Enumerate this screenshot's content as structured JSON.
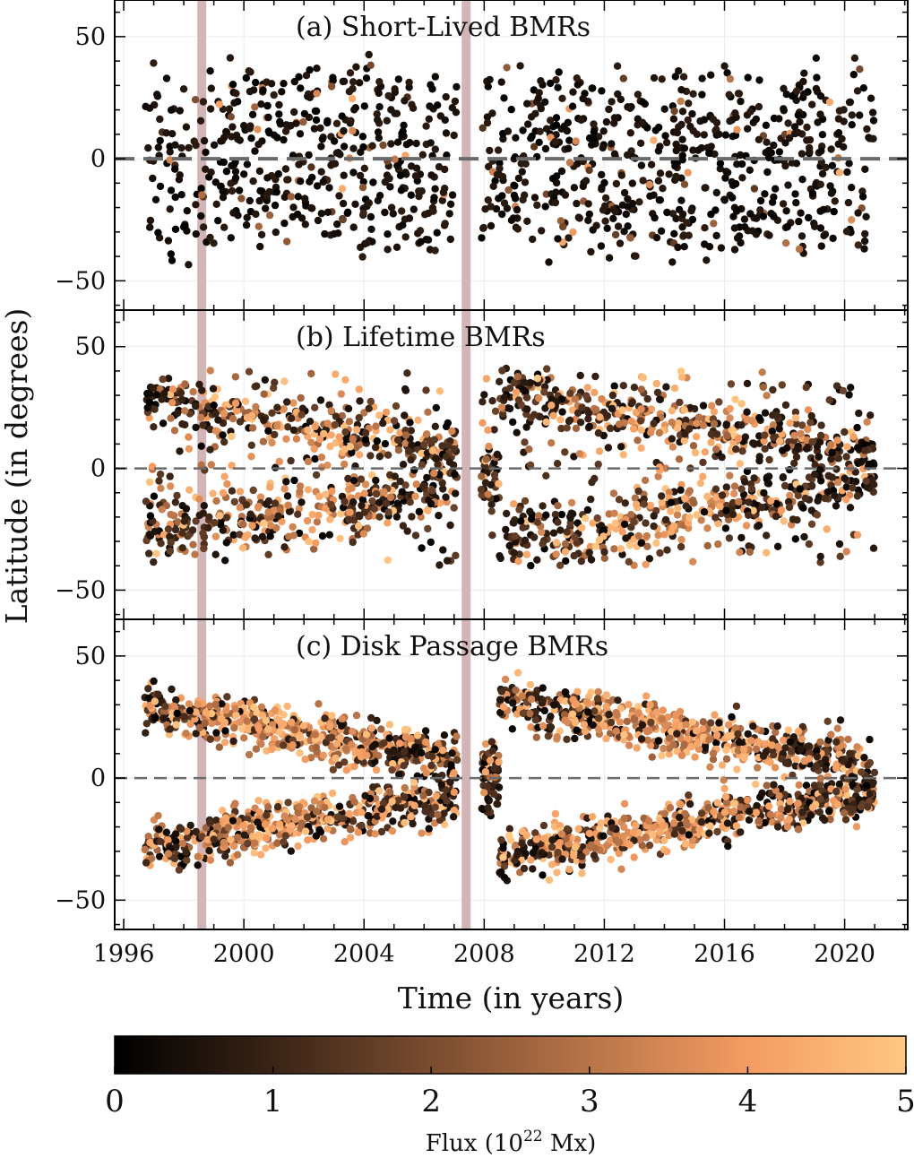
{
  "chart_data": {
    "type": "scatter",
    "xlabel": "Time (in years)",
    "ylabel": "Latitude (in degrees)",
    "xlim": [
      1995.7,
      2022.1
    ],
    "ylim": [
      -62,
      65
    ],
    "x_ticks": [
      1996,
      2000,
      2004,
      2008,
      2012,
      2016,
      2020
    ],
    "x_tick_labels": [
      "1996",
      "2000",
      "2004",
      "2008",
      "2012",
      "2016",
      "2020"
    ],
    "y_ticks": [
      -50,
      0,
      50
    ],
    "y_tick_labels": [
      "−50",
      "0",
      "50"
    ],
    "reference_line_y": 0,
    "shaded_bands_years": [
      1998.6,
      2007.4
    ],
    "grid": true,
    "panels": [
      {
        "title": "(a) Short-Lived BMRs",
        "description": "sparse, mostly low-flux points spread across all latitudes"
      },
      {
        "title": "(b) Lifetime BMRs",
        "description": "two butterfly wings, flux up to ~5, migrating equatorward"
      },
      {
        "title": "(c) Disk Passage BMRs",
        "description": "dense butterfly wings with many high-flux points"
      }
    ],
    "colorbar": {
      "label": "Flux (10",
      "label_sup": "22",
      "label_end": " Mx)",
      "min": 0,
      "max": 5,
      "ticks": [
        "0",
        "1",
        "2",
        "3",
        "4",
        "5"
      ],
      "colors": [
        "#000000",
        "#3a2416",
        "#7a4c30",
        "#b87448",
        "#f49c62",
        "#ffc784"
      ]
    }
  }
}
